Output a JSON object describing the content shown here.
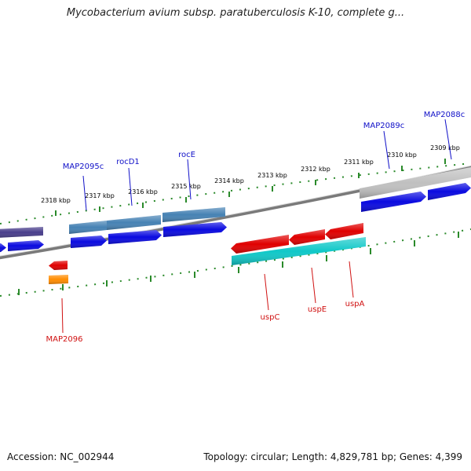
{
  "title": "Mycobacterium avium subsp. paratuberculosis K-10, complete g...",
  "footer": {
    "accession": "Accession: NC_002944",
    "summary": "Topology: circular; Length: 4,829,781 bp; Genes: 4,399"
  },
  "scale_ticks": [
    "2318 kbp",
    "2317 kbp",
    "2316 kbp",
    "2315 kbp",
    "2314 kbp",
    "2313 kbp",
    "2312 kbp",
    "2311 kbp",
    "2310 kbp",
    "2309 kbp"
  ],
  "genes_top": [
    "MAP2095c",
    "rocD1",
    "rocE",
    "MAP2089c",
    "MAP2088c"
  ],
  "genes_bottom": [
    "MAP2096",
    "uspC",
    "uspE",
    "uspA"
  ],
  "colors": {
    "backbone": "#7a7a7a",
    "tick": "#2a8a2a",
    "cds_blue": "#0a0ae0",
    "steel_blue": "#4682b4",
    "slate": "#483d8b",
    "light_gray": "#c0c0c0",
    "red": "#e00000",
    "cyan": "#10c8c8",
    "orange": "#ff8c00",
    "label_blue": "#1010c8",
    "label_red": "#d01010"
  }
}
